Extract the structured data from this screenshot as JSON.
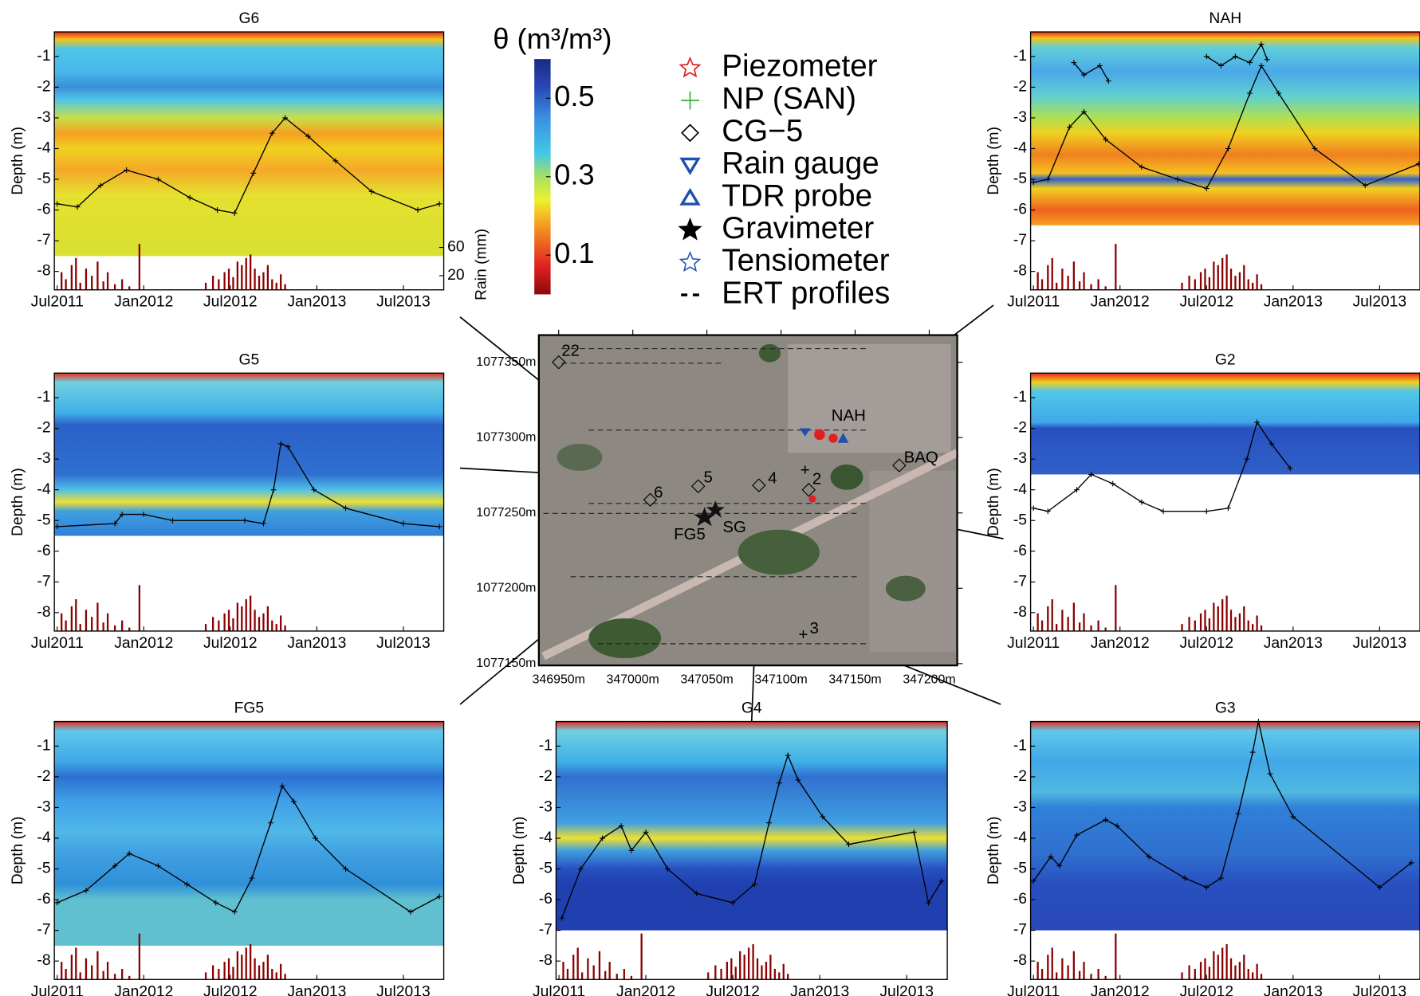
{
  "chart_data": [
    {
      "type": "contour",
      "title": "G6",
      "ylabel": "Depth (m)",
      "ylim": [
        -8.6,
        -0.2
      ],
      "yticks": [
        -1,
        -2,
        -3,
        -4,
        -5,
        -6,
        -7,
        -8
      ],
      "xlim": [
        -0.2,
        26.8
      ],
      "xticks": [
        {
          "value": 0,
          "label": "Jul2011"
        },
        {
          "value": 6,
          "label": "Jan2012"
        },
        {
          "value": 12,
          "label": "Jul2012"
        },
        {
          "value": 18,
          "label": "Jan2013"
        },
        {
          "value": 24,
          "label": "Jul2013"
        }
      ],
      "series": [
        {
          "color": "#000000",
          "x": [
            0,
            1.4,
            3,
            4.8,
            7,
            9.2,
            11.1,
            12.3,
            13.6,
            14.9,
            15.8,
            17.4,
            19.3,
            21.8,
            25,
            26.5
          ],
          "values": [
            -5.8,
            -5.9,
            -5.2,
            -4.7,
            -5.0,
            -5.6,
            -6.0,
            -6.1,
            -4.8,
            -3.5,
            -3.0,
            -3.6,
            -4.4,
            -5.4,
            -6.0,
            -5.8
          ]
        }
      ]
    },
    {
      "type": "contour",
      "title": "NAH",
      "ylabel": "Depth (m)",
      "ylim": [
        -8.6,
        -0.2
      ],
      "yticks": [
        -1,
        -2,
        -3,
        -4,
        -5,
        -6,
        -7,
        -8
      ],
      "xlim": [
        -0.2,
        26.8
      ],
      "xticks": [
        {
          "value": 0,
          "label": "Jul2011"
        },
        {
          "value": 6,
          "label": "Jan2012"
        },
        {
          "value": 12,
          "label": "Jul2012"
        },
        {
          "value": 18,
          "label": "Jan2013"
        },
        {
          "value": 24,
          "label": "Jul2013"
        }
      ],
      "series": [
        {
          "color": "#000000",
          "x": [
            0,
            1,
            2.5,
            3.5,
            5,
            7.5,
            10,
            12,
            13.5,
            15,
            15.8,
            17,
            19.5,
            23,
            26.7
          ],
          "values": [
            -5.1,
            -5.0,
            -3.3,
            -2.8,
            -3.7,
            -4.6,
            -5.0,
            -5.3,
            -4.0,
            -2.2,
            -1.3,
            -2.2,
            -4.0,
            -5.2,
            -4.5
          ]
        },
        {
          "color": "#000000",
          "x": [
            2.8,
            3.5,
            4.6,
            5.2,
            8,
            12,
            13,
            14,
            15,
            15.8,
            16.2
          ],
          "values": [
            -1.2,
            -1.6,
            -1.3,
            -1.8,
            null,
            -1.0,
            -1.3,
            -1.0,
            -1.2,
            -0.6,
            -1.1
          ]
        }
      ]
    },
    {
      "type": "contour",
      "title": "G5",
      "ylabel": "Depth (m)",
      "ylim": [
        -8.6,
        -0.2
      ],
      "yticks": [
        -1,
        -2,
        -3,
        -4,
        -5,
        -6,
        -7,
        -8
      ],
      "xlim": [
        -0.2,
        26.8
      ],
      "xticks": [
        {
          "value": 0,
          "label": "Jul2011"
        },
        {
          "value": 6,
          "label": "Jan2012"
        },
        {
          "value": 12,
          "label": "Jul2012"
        },
        {
          "value": 18,
          "label": "Jan2013"
        },
        {
          "value": 24,
          "label": "Jul2013"
        }
      ],
      "series": [
        {
          "color": "#000000",
          "x": [
            0,
            4,
            4.5,
            6,
            8,
            13,
            14.3,
            15,
            15.5,
            16,
            17.8,
            20,
            24,
            26.5
          ],
          "values": [
            -5.2,
            -5.1,
            -4.8,
            -4.8,
            -5.0,
            -5.0,
            -5.1,
            -4.0,
            -2.5,
            -2.6,
            -4.0,
            -4.6,
            -5.1,
            -5.2
          ]
        }
      ]
    },
    {
      "type": "contour",
      "title": "G2",
      "ylabel": "Depth (m)",
      "ylim": [
        -8.6,
        -0.2
      ],
      "yticks": [
        -1,
        -2,
        -3,
        -4,
        -5,
        -6,
        -7,
        -8
      ],
      "xlim": [
        -0.2,
        26.8
      ],
      "xticks": [
        {
          "value": 0,
          "label": "Jul2011"
        },
        {
          "value": 6,
          "label": "Jan2012"
        },
        {
          "value": 12,
          "label": "Jul2012"
        },
        {
          "value": 18,
          "label": "Jan2013"
        },
        {
          "value": 24,
          "label": "Jul2013"
        }
      ],
      "series": [
        {
          "color": "#000000",
          "x": [
            0,
            1,
            3,
            4,
            5.5,
            7.5,
            9,
            12,
            13.5,
            14.8,
            15.5,
            16.5,
            17.8
          ],
          "values": [
            -4.6,
            -4.7,
            -4.0,
            -3.5,
            -3.8,
            -4.4,
            -4.7,
            -4.7,
            -4.6,
            -3.0,
            -1.8,
            -2.5,
            -3.3
          ]
        }
      ]
    },
    {
      "type": "contour",
      "title": "FG5",
      "ylabel": "Depth (m)",
      "ylim": [
        -8.6,
        -0.2
      ],
      "yticks": [
        -1,
        -2,
        -3,
        -4,
        -5,
        -6,
        -7,
        -8
      ],
      "xlim": [
        -0.2,
        26.8
      ],
      "xticks": [
        {
          "value": 0,
          "label": "Jul2011"
        },
        {
          "value": 6,
          "label": "Jan2012"
        },
        {
          "value": 12,
          "label": "Jul2012"
        },
        {
          "value": 18,
          "label": "Jan2013"
        },
        {
          "value": 24,
          "label": "Jul2013"
        }
      ],
      "series": [
        {
          "color": "#000000",
          "x": [
            0,
            2,
            4,
            5,
            7,
            9,
            11,
            12.3,
            13.5,
            14.8,
            15.6,
            16.4,
            17.9,
            20,
            24.5,
            26.5
          ],
          "values": [
            -6.1,
            -5.7,
            -4.9,
            -4.5,
            -4.9,
            -5.5,
            -6.1,
            -6.4,
            -5.3,
            -3.5,
            -2.3,
            -2.8,
            -4.0,
            -5.0,
            -6.4,
            -5.9
          ]
        }
      ]
    },
    {
      "type": "contour",
      "title": "G4",
      "ylabel": "Depth (m)",
      "ylim": [
        -8.6,
        -0.2
      ],
      "yticks": [
        -1,
        -2,
        -3,
        -4,
        -5,
        -6,
        -7,
        -8
      ],
      "xlim": [
        -0.2,
        26.8
      ],
      "xticks": [
        {
          "value": 0,
          "label": "Jul2011"
        },
        {
          "value": 6,
          "label": "Jan2012"
        },
        {
          "value": 12,
          "label": "Jul2012"
        },
        {
          "value": 18,
          "label": "Jan2013"
        },
        {
          "value": 24,
          "label": "Jul2013"
        }
      ],
      "series": [
        {
          "color": "#000000",
          "x": [
            0.2,
            1.5,
            3,
            4.3,
            5,
            6,
            7.5,
            9.5,
            12,
            13.5,
            14.5,
            15.2,
            15.8,
            16.5,
            18.2,
            20,
            24.5,
            25.5,
            26.4
          ],
          "values": [
            -6.6,
            -5.0,
            -4.0,
            -3.6,
            -4.4,
            -3.8,
            -5.0,
            -5.8,
            -6.1,
            -5.5,
            -3.5,
            -2.2,
            -1.3,
            -2.1,
            -3.3,
            -4.2,
            -3.8,
            -6.1,
            -5.4
          ]
        }
      ]
    },
    {
      "type": "contour",
      "title": "G3",
      "ylabel": "Depth (m)",
      "ylim": [
        -8.6,
        -0.2
      ],
      "yticks": [
        -1,
        -2,
        -3,
        -4,
        -5,
        -6,
        -7,
        -8
      ],
      "xlim": [
        -0.2,
        26.8
      ],
      "xticks": [
        {
          "value": 0,
          "label": "Jul2011"
        },
        {
          "value": 6,
          "label": "Jan2012"
        },
        {
          "value": 12,
          "label": "Jul2012"
        },
        {
          "value": 18,
          "label": "Jan2013"
        },
        {
          "value": 24,
          "label": "Jul2013"
        }
      ],
      "series": [
        {
          "color": "#000000",
          "x": [
            0,
            1.2,
            1.8,
            3,
            5,
            5.8,
            8,
            10.5,
            12,
            13,
            14.2,
            15.2,
            15.6,
            16.4,
            18,
            24,
            26.2
          ],
          "values": [
            -5.4,
            -4.6,
            -4.9,
            -3.9,
            -3.4,
            -3.6,
            -4.6,
            -5.3,
            -5.6,
            -5.3,
            -3.2,
            -1.2,
            -0.2,
            -1.9,
            -3.3,
            -5.6,
            -4.8
          ]
        }
      ]
    }
  ],
  "rain": {
    "ylabel": "Rain (mm)",
    "color": "#8b0000",
    "ylim": [
      0,
      365
    ],
    "yticks": [
      20,
      60
    ],
    "x": [
      0.3,
      0.6,
      1.0,
      1.3,
      1.6,
      2.0,
      2.4,
      2.8,
      3.2,
      3.5,
      4.0,
      4.5,
      5.0,
      5.7,
      10.3,
      10.8,
      11.2,
      11.6,
      11.9,
      12.2,
      12.5,
      12.8,
      13.1,
      13.4,
      13.7,
      14.0,
      14.3,
      14.6,
      14.9,
      15.2,
      15.5,
      15.8
    ],
    "values": [
      25,
      15,
      35,
      45,
      10,
      30,
      20,
      40,
      12,
      25,
      8,
      15,
      5,
      65,
      10,
      20,
      15,
      25,
      30,
      18,
      40,
      35,
      45,
      50,
      30,
      20,
      25,
      35,
      15,
      10,
      22,
      8
    ]
  },
  "colorbar": {
    "title": "θ (m³/m³)",
    "clim": [
      0,
      0.6
    ],
    "ticks": [
      0.1,
      0.3,
      0.5
    ]
  },
  "legend": {
    "items": [
      "Piezometer",
      "NP (SAN)",
      "CG−5",
      "Rain gauge",
      "TDR probe",
      "Gravimeter",
      "Tensiometer",
      "ERT profiles"
    ]
  },
  "map": {
    "xlim": [
      346936.6,
      347218.9
    ],
    "ylim": [
      1077148.8,
      1077368
    ],
    "xticks": [
      {
        "value": 346950,
        "label": "346950m"
      },
      {
        "value": 347000,
        "label": "347000m"
      },
      {
        "value": 347050,
        "label": "347050m"
      },
      {
        "value": 347100,
        "label": "347100m"
      },
      {
        "value": 347150,
        "label": "347150m"
      },
      {
        "value": 347200,
        "label": "347200m"
      }
    ],
    "yticks": [
      {
        "value": 1077350,
        "label": "1077350m"
      },
      {
        "value": 1077300,
        "label": "1077300m"
      },
      {
        "value": 1077250,
        "label": "1077250m"
      },
      {
        "value": 1077200,
        "label": "1077200m"
      },
      {
        "value": 1077150,
        "label": "1077150m"
      }
    ],
    "sites": [
      "22",
      "NAH",
      "BAQ",
      "5",
      "6",
      "4",
      "2",
      "FG5",
      "SG",
      "3"
    ]
  }
}
